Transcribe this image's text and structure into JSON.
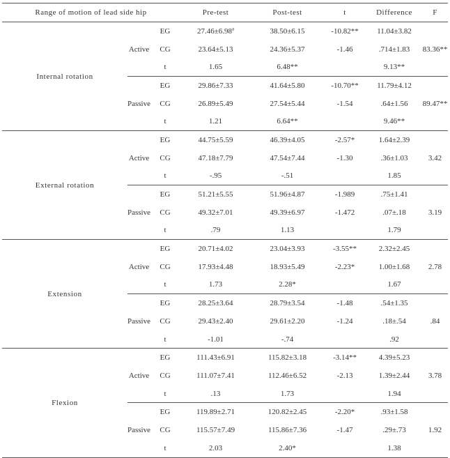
{
  "headers": [
    "Range of motion of lead side hip",
    "",
    "",
    "Pre-test",
    "Post-test",
    "t",
    "Difference",
    "F"
  ],
  "blocks": [
    {
      "measure": "Internal rotation",
      "modes": [
        {
          "mode": "Active",
          "F": "83.36**",
          "rows": [
            {
              "group": "EG",
              "pre": "27.46±6.98",
              "pre_sup": "a",
              "post": "38.50±6.15",
              "t": "-10.82**",
              "diff": "11.04±3.82"
            },
            {
              "group": "CG",
              "pre": "23.64±5.13",
              "post": "24.36±5.37",
              "t": "-1.46",
              "diff": ".714±1.83"
            },
            {
              "group": "t",
              "pre": "1.65",
              "post": "6.48**",
              "t": "",
              "diff": "9.13**"
            }
          ]
        },
        {
          "mode": "Passive",
          "F": "89.47**",
          "rows": [
            {
              "group": "EG",
              "pre": "29.86±7.33",
              "post": "41.64±5.80",
              "t": "-10.70**",
              "diff": "11.79±4.12"
            },
            {
              "group": "CG",
              "pre": "26.89±5.49",
              "post": "27.54±5.44",
              "t": "-1.54",
              "diff": ".64±1.56"
            },
            {
              "group": "t",
              "pre": "1.21",
              "post": "6.64**",
              "t": "",
              "diff": "9.46**"
            }
          ]
        }
      ]
    },
    {
      "measure": "External rotation",
      "modes": [
        {
          "mode": "Active",
          "F": "3.42",
          "rows": [
            {
              "group": "EG",
              "pre": "44.75±5.59",
              "post": "46.39±4.05",
              "t": "-2.57*",
              "diff": "1.64±2.39"
            },
            {
              "group": "CG",
              "pre": "47.18±7.79",
              "post": "47.54±7.44",
              "t": "-1.30",
              "diff": ".36±1.03"
            },
            {
              "group": "t",
              "pre": "-.95",
              "post": "-.51",
              "t": "",
              "diff": "1.85"
            }
          ]
        },
        {
          "mode": "Passive",
          "F": "3.19",
          "rows": [
            {
              "group": "EG",
              "pre": "51.21±5.55",
              "post": "51.96±4.87",
              "t": "-1.989",
              "diff": ".75±1.41"
            },
            {
              "group": "CG",
              "pre": "49.32±7.01",
              "post": "49.39±6.97",
              "t": "-1.472",
              "diff": ".07±.18"
            },
            {
              "group": "t",
              "pre": ".79",
              "post": "1.13",
              "t": "",
              "diff": "1.79"
            }
          ]
        }
      ]
    },
    {
      "measure": "Extension",
      "modes": [
        {
          "mode": "Active",
          "F": "2.78",
          "rows": [
            {
              "group": "EG",
              "pre": "20.71±4.02",
              "post": "23.04±3.93",
              "t": "-3.55**",
              "diff": "2.32±2.45"
            },
            {
              "group": "CG",
              "pre": "17.93±4.48",
              "post": "18.93±5.49",
              "t": "-2.23*",
              "diff": "1.00±1.68"
            },
            {
              "group": "t",
              "pre": "1.73",
              "post": "2.28*",
              "t": "",
              "diff": "1.67"
            }
          ]
        },
        {
          "mode": "Passive",
          "F": ".84",
          "rows": [
            {
              "group": "EG",
              "pre": "28.25±3.64",
              "post": "28.79±3.54",
              "t": "-1.48",
              "diff": ".54±1.35"
            },
            {
              "group": "CG",
              "pre": "29.43±2.40",
              "post": "29.61±2.20",
              "t": "-1.24",
              "diff": ".18±.54"
            },
            {
              "group": "t",
              "pre": "-1.01",
              "post": "-.74",
              "t": "",
              "diff": ".92"
            }
          ]
        }
      ]
    },
    {
      "measure": "Flexion",
      "modes": [
        {
          "mode": "Active",
          "F": "3.78",
          "rows": [
            {
              "group": "EG",
              "pre": "111.43±6.91",
              "post": "115.82±3.18",
              "t": "-3.14**",
              "diff": "4.39±5.23"
            },
            {
              "group": "CG",
              "pre": "111.07±7.41",
              "post": "112.46±6.52",
              "t": "-2.13",
              "diff": "1.39±2.44"
            },
            {
              "group": "t",
              "pre": ".13",
              "post": "1.73",
              "t": "",
              "diff": "1.94"
            }
          ]
        },
        {
          "mode": "Passive",
          "F": "1.92",
          "rows": [
            {
              "group": "EG",
              "pre": "119.89±2.71",
              "post": "120.82±2.45",
              "t": "-2.20*",
              "diff": ".93±1.58"
            },
            {
              "group": "CG",
              "pre": "115.57±7.49",
              "post": "115.86±7.36",
              "t": "-1.47",
              "diff": ".29±.73"
            },
            {
              "group": "t",
              "pre": "2.03",
              "post": "2.40*",
              "t": "",
              "diff": "1.38"
            }
          ]
        }
      ]
    }
  ]
}
